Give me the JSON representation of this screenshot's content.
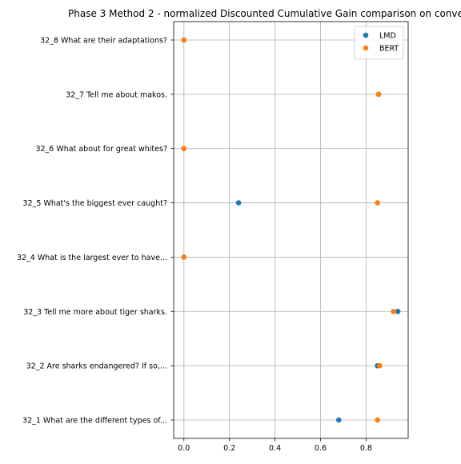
{
  "chart_data": {
    "type": "scatter",
    "title": "Phase 3 Method 2 - normalized Discounted Cumulative Gain comparison on conve",
    "xlabel": "",
    "ylabel": "",
    "xlim": [
      -0.045,
      0.985
    ],
    "xticks": [
      0.0,
      0.2,
      0.4,
      0.6,
      0.8
    ],
    "xtick_labels": [
      "0.0",
      "0.2",
      "0.4",
      "0.6",
      "0.8"
    ],
    "grid": true,
    "legend_position": "upper right",
    "categories": [
      "32_1 What are the different types of...",
      "32_2 Are sharks endangered? If so,...",
      "32_3 Tell me more about tiger sharks.",
      "32_4 What is the largest ever to have...",
      "32_5 What's the biggest ever caught?",
      "32_6 What about for great whites?",
      "32_7 Tell me about makos.",
      "32_8 What are their adaptations?"
    ],
    "series": [
      {
        "name": "LMD",
        "color": "#1f77b4",
        "values": [
          0.68,
          0.85,
          0.94,
          0.0,
          0.24,
          0.0,
          0.855,
          0.0
        ]
      },
      {
        "name": "BERT",
        "color": "#ff7f0e",
        "values": [
          0.85,
          0.86,
          0.92,
          0.0,
          0.85,
          0.0,
          0.855,
          0.0
        ]
      }
    ]
  }
}
